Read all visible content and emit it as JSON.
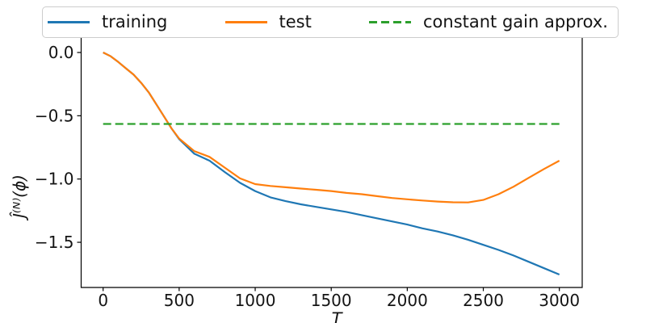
{
  "figure": {
    "background": "#ffffff",
    "xlabel": "T",
    "ylabel": "Ĵ⁽ᴺ⁾(ϕ)",
    "x_ticks": [
      "0",
      "500",
      "1000",
      "1500",
      "2000",
      "2500",
      "3000"
    ],
    "y_ticks": [
      "0.0",
      "−0.5",
      "−1.0",
      "−1.5"
    ]
  },
  "legend": {
    "entries": [
      {
        "label": "training",
        "color": "#1f77b4",
        "style": "solid"
      },
      {
        "label": "test",
        "color": "#ff7f0e",
        "style": "solid"
      },
      {
        "label": "constant gain approx.",
        "color": "#2ca02c",
        "style": "dashed"
      }
    ]
  },
  "chart_data": {
    "type": "line",
    "title": "",
    "xlabel": "T",
    "ylabel": "J_hat^(N)(phi)",
    "xlim": [
      -150,
      3150
    ],
    "ylim": [
      -1.86,
      0.12
    ],
    "x_tick_values": [
      0,
      500,
      1000,
      1500,
      2000,
      2500,
      3000
    ],
    "y_tick_values": [
      0,
      -0.5,
      -1.0,
      -1.5
    ],
    "grid": false,
    "legend_position": "upper center, horizontal, boxed",
    "series": [
      {
        "name": "training",
        "color": "#1f77b4",
        "style": "solid",
        "x": [
          0,
          50,
          100,
          150,
          200,
          250,
          300,
          350,
          400,
          450,
          500,
          600,
          700,
          800,
          900,
          1000,
          1100,
          1200,
          1300,
          1400,
          1500,
          1600,
          1700,
          1800,
          1900,
          2000,
          2100,
          2200,
          2300,
          2400,
          2500,
          2600,
          2700,
          2800,
          2900,
          3000
        ],
        "y": [
          0.0,
          -0.03,
          -0.075,
          -0.125,
          -0.175,
          -0.24,
          -0.315,
          -0.41,
          -0.505,
          -0.6,
          -0.685,
          -0.8,
          -0.855,
          -0.945,
          -1.03,
          -1.095,
          -1.145,
          -1.175,
          -1.2,
          -1.22,
          -1.24,
          -1.26,
          -1.285,
          -1.31,
          -1.335,
          -1.36,
          -1.39,
          -1.415,
          -1.445,
          -1.48,
          -1.52,
          -1.56,
          -1.605,
          -1.655,
          -1.705,
          -1.755
        ]
      },
      {
        "name": "test",
        "color": "#ff7f0e",
        "style": "solid",
        "x": [
          0,
          50,
          100,
          150,
          200,
          250,
          300,
          350,
          400,
          450,
          500,
          600,
          700,
          800,
          900,
          1000,
          1100,
          1200,
          1300,
          1400,
          1500,
          1600,
          1700,
          1800,
          1900,
          2000,
          2100,
          2200,
          2300,
          2400,
          2500,
          2600,
          2700,
          2800,
          2900,
          3000
        ],
        "y": [
          0.0,
          -0.03,
          -0.075,
          -0.125,
          -0.175,
          -0.24,
          -0.315,
          -0.41,
          -0.505,
          -0.6,
          -0.68,
          -0.78,
          -0.825,
          -0.91,
          -0.995,
          -1.04,
          -1.055,
          -1.065,
          -1.075,
          -1.085,
          -1.095,
          -1.11,
          -1.12,
          -1.135,
          -1.15,
          -1.16,
          -1.17,
          -1.178,
          -1.184,
          -1.185,
          -1.165,
          -1.12,
          -1.06,
          -0.99,
          -0.92,
          -0.855
        ]
      },
      {
        "name": "constant gain approx.",
        "color": "#2ca02c",
        "style": "dashed",
        "x": [
          0,
          3000
        ],
        "y": [
          -0.565,
          -0.565
        ]
      }
    ]
  }
}
